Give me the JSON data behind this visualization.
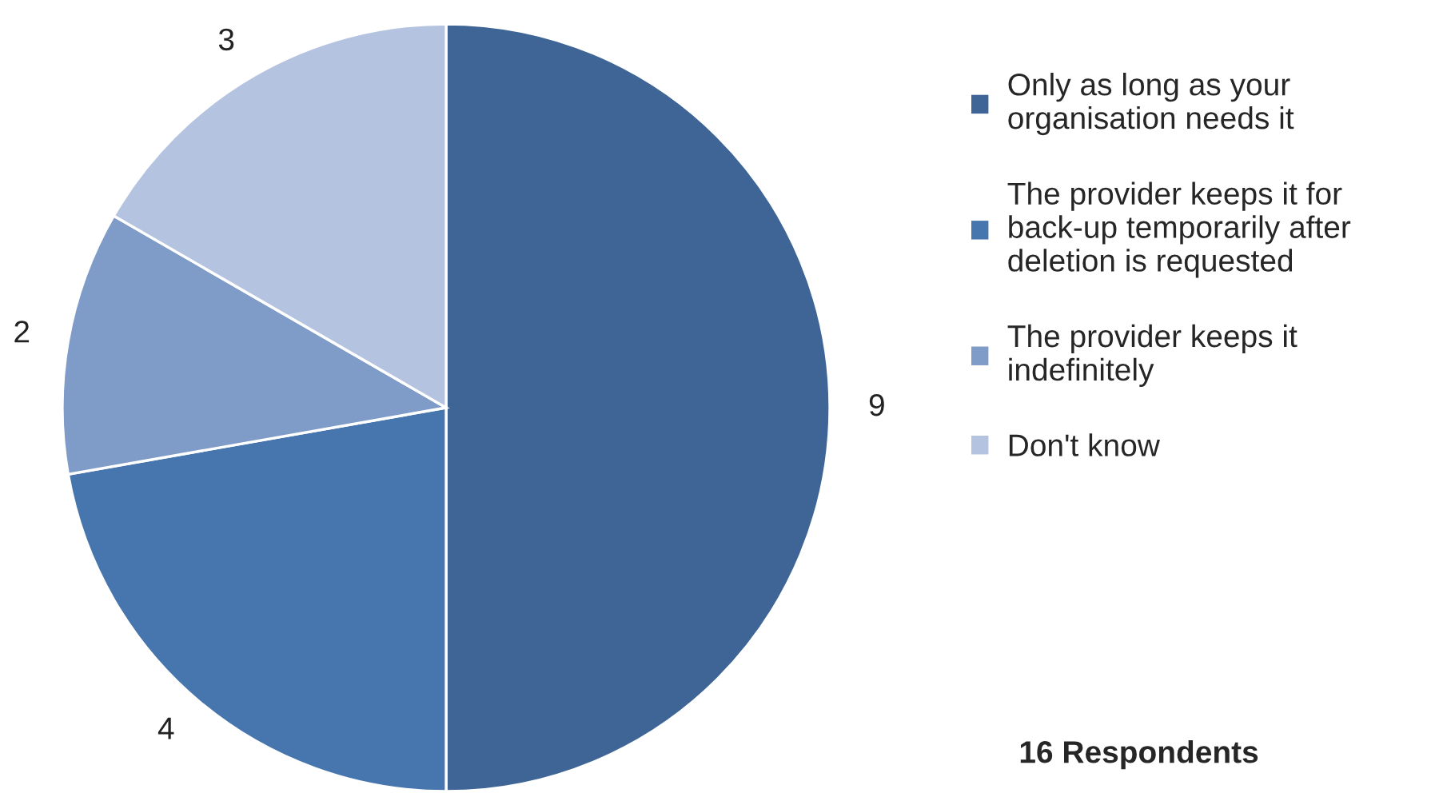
{
  "chart_data": {
    "type": "pie",
    "categories": [
      "Only as long as your\norganisation needs it",
      "The provider keeps it for\nback-up temporarily after\ndeletion is requested",
      "The provider keeps it\nindefinitely",
      "Don't know"
    ],
    "values": [
      9,
      4,
      2,
      3
    ],
    "colors": [
      "#3e6596",
      "#4775ad",
      "#7f9bc8",
      "#b4c3df"
    ],
    "data_labels": true,
    "legend": "right",
    "annotations": [
      "16 Respondents"
    ]
  }
}
